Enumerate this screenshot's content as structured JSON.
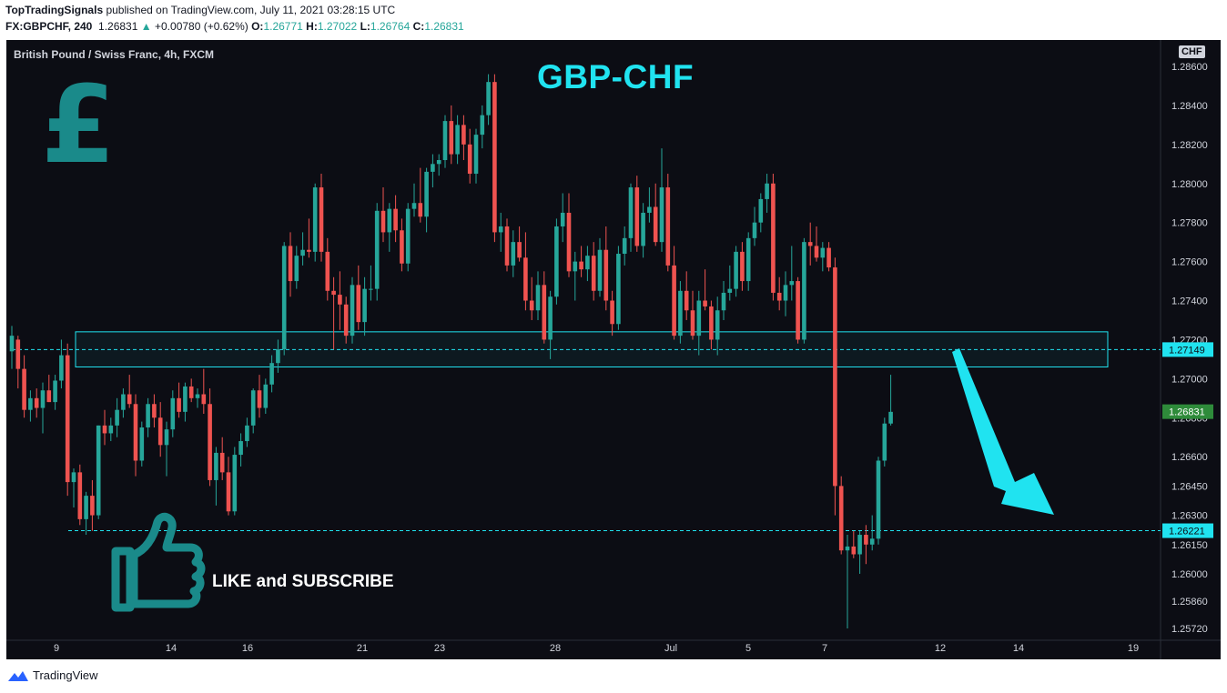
{
  "header": {
    "author": "TopTradingSignals",
    "published_text": " published on TradingView.com, July 11, 2021 03:28:15 UTC",
    "symbol": "FX:GBPCHF, 240",
    "last": "1.26831",
    "change": "+0.00780 (+0.62%)",
    "o_label": "O:",
    "o": "1.26771",
    "h_label": "H:",
    "h": "1.27022",
    "l_label": "L:",
    "l": "1.26764",
    "c_label": "C:",
    "c": "1.26831"
  },
  "chart": {
    "symbol_line": "British Pound / Swiss Franc, 4h, FXCM",
    "overlay_title": "GBP-CHF",
    "pound_symbol": "£",
    "cta": "LIKE and SUBSCRIBE",
    "currency_badge": "CHF"
  },
  "footer": {
    "brand": "TradingView"
  },
  "colors": {
    "up": "#26a69a",
    "down": "#ef5350",
    "accent": "#20e3f0",
    "background": "#0c0d14"
  },
  "chart_data": {
    "type": "candlestick",
    "title": "GBP-CHF",
    "x_ticks": [
      "9",
      "14",
      "16",
      "21",
      "23",
      "28",
      "Jul",
      "5",
      "7",
      "12",
      "14",
      "19"
    ],
    "y_ticks": [
      1.286,
      1.284,
      1.282,
      1.28,
      1.278,
      1.276,
      1.274,
      1.272,
      1.27,
      1.268,
      1.266,
      1.2645,
      1.263,
      1.2615,
      1.26,
      1.2586,
      1.2572
    ],
    "y_tick_labels": [
      "1.28600",
      "1.28400",
      "1.28200",
      "1.28000",
      "1.27800",
      "1.27600",
      "1.27400",
      "1.27200",
      "1.27000",
      "1.26800",
      "1.26600",
      "1.26450",
      "1.26300",
      "1.26150",
      "1.26000",
      "1.25860",
      "1.25720"
    ],
    "ylim": [
      1.2566,
      1.2868
    ],
    "resistance_zone": [
      1.2706,
      1.2724
    ],
    "levels": [
      {
        "value": 1.27149,
        "label": "1.27149",
        "style": "dashed"
      },
      {
        "value": 1.26221,
        "label": "1.26221",
        "style": "dashed"
      }
    ],
    "last_price": {
      "value": 1.26831,
      "label": "1.26831"
    },
    "annotation": "arrow pointing down toward 1.26221",
    "candles": [
      [
        1.2714,
        1.2727,
        1.2705,
        1.2722
      ],
      [
        1.272,
        1.2722,
        1.2695,
        1.2705
      ],
      [
        1.2705,
        1.2712,
        1.268,
        1.2684
      ],
      [
        1.2684,
        1.2694,
        1.2678,
        1.269
      ],
      [
        1.269,
        1.2695,
        1.268,
        1.2685
      ],
      [
        1.2685,
        1.2698,
        1.2672,
        1.2694
      ],
      [
        1.2694,
        1.2702,
        1.2688,
        1.2688
      ],
      [
        1.2688,
        1.2702,
        1.2684,
        1.2699
      ],
      [
        1.2699,
        1.272,
        1.2695,
        1.2712
      ],
      [
        1.2712,
        1.2718,
        1.264,
        1.2647
      ],
      [
        1.2647,
        1.2654,
        1.2634,
        1.2652
      ],
      [
        1.2652,
        1.2656,
        1.2625,
        1.2628
      ],
      [
        1.2628,
        1.2642,
        1.262,
        1.264
      ],
      [
        1.264,
        1.2648,
        1.2622,
        1.263
      ],
      [
        1.263,
        1.2676,
        1.2628,
        1.2676
      ],
      [
        1.2676,
        1.2684,
        1.2666,
        1.2672
      ],
      [
        1.2672,
        1.268,
        1.2668,
        1.2676
      ],
      [
        1.2676,
        1.269,
        1.267,
        1.2684
      ],
      [
        1.2684,
        1.2695,
        1.268,
        1.2692
      ],
      [
        1.2692,
        1.2702,
        1.2685,
        1.2687
      ],
      [
        1.2687,
        1.2692,
        1.265,
        1.2658
      ],
      [
        1.2658,
        1.2678,
        1.2655,
        1.2675
      ],
      [
        1.2675,
        1.269,
        1.267,
        1.2687
      ],
      [
        1.2687,
        1.2692,
        1.2675,
        1.268
      ],
      [
        1.268,
        1.2688,
        1.266,
        1.2666
      ],
      [
        1.2666,
        1.2678,
        1.265,
        1.2674
      ],
      [
        1.2674,
        1.2694,
        1.267,
        1.269
      ],
      [
        1.269,
        1.2698,
        1.268,
        1.2683
      ],
      [
        1.2683,
        1.2698,
        1.2678,
        1.2696
      ],
      [
        1.2696,
        1.27,
        1.2688,
        1.269
      ],
      [
        1.269,
        1.2695,
        1.2685,
        1.2692
      ],
      [
        1.2692,
        1.2705,
        1.2682,
        1.2687
      ],
      [
        1.2687,
        1.2695,
        1.2645,
        1.2648
      ],
      [
        1.2648,
        1.2665,
        1.2635,
        1.2662
      ],
      [
        1.2662,
        1.267,
        1.2648,
        1.2652
      ],
      [
        1.2652,
        1.266,
        1.263,
        1.2632
      ],
      [
        1.2632,
        1.2665,
        1.263,
        1.2661
      ],
      [
        1.2661,
        1.2672,
        1.2655,
        1.2668
      ],
      [
        1.2668,
        1.268,
        1.2665,
        1.2676
      ],
      [
        1.2676,
        1.2695,
        1.2672,
        1.2694
      ],
      [
        1.2694,
        1.2702,
        1.268,
        1.2685
      ],
      [
        1.2685,
        1.27,
        1.2682,
        1.2697
      ],
      [
        1.2697,
        1.2712,
        1.2693,
        1.2708
      ],
      [
        1.2708,
        1.272,
        1.2703,
        1.2715
      ],
      [
        1.2715,
        1.277,
        1.2712,
        1.2768
      ],
      [
        1.2768,
        1.2775,
        1.2742,
        1.275
      ],
      [
        1.275,
        1.2768,
        1.2746,
        1.2763
      ],
      [
        1.2763,
        1.2775,
        1.2758,
        1.2766
      ],
      [
        1.2766,
        1.2782,
        1.2762,
        1.2765
      ],
      [
        1.2765,
        1.28,
        1.276,
        1.2798
      ],
      [
        1.2798,
        1.2805,
        1.276,
        1.2765
      ],
      [
        1.2765,
        1.2772,
        1.274,
        1.2745
      ],
      [
        1.2745,
        1.2752,
        1.2715,
        1.2743
      ],
      [
        1.2743,
        1.2755,
        1.2725,
        1.2738
      ],
      [
        1.2738,
        1.2742,
        1.2718,
        1.2722
      ],
      [
        1.2722,
        1.2752,
        1.2718,
        1.2748
      ],
      [
        1.2748,
        1.2758,
        1.2725,
        1.2729
      ],
      [
        1.2729,
        1.2752,
        1.2722,
        1.2746
      ],
      [
        1.2746,
        1.2758,
        1.274,
        1.2746
      ],
      [
        1.2746,
        1.279,
        1.274,
        1.2786
      ],
      [
        1.2786,
        1.2798,
        1.277,
        1.2775
      ],
      [
        1.2775,
        1.279,
        1.2765,
        1.2787
      ],
      [
        1.2787,
        1.2794,
        1.277,
        1.2776
      ],
      [
        1.2776,
        1.2782,
        1.2755,
        1.2759
      ],
      [
        1.2759,
        1.279,
        1.2755,
        1.2787
      ],
      [
        1.2787,
        1.28,
        1.2783,
        1.279
      ],
      [
        1.279,
        1.2808,
        1.278,
        1.2783
      ],
      [
        1.2783,
        1.2808,
        1.2775,
        1.2806
      ],
      [
        1.2806,
        1.2815,
        1.2798,
        1.281
      ],
      [
        1.281,
        1.2815,
        1.2804,
        1.2812
      ],
      [
        1.2812,
        1.2835,
        1.2808,
        1.2832
      ],
      [
        1.2832,
        1.284,
        1.281,
        1.2815
      ],
      [
        1.2815,
        1.2835,
        1.281,
        1.283
      ],
      [
        1.283,
        1.2835,
        1.2812,
        1.282
      ],
      [
        1.282,
        1.2828,
        1.28,
        1.2805
      ],
      [
        1.2805,
        1.2828,
        1.28,
        1.2825
      ],
      [
        1.2825,
        1.284,
        1.2818,
        1.2835
      ],
      [
        1.2835,
        1.2856,
        1.283,
        1.2852
      ],
      [
        1.2852,
        1.2856,
        1.277,
        1.2775
      ],
      [
        1.2775,
        1.2785,
        1.2765,
        1.2778
      ],
      [
        1.2778,
        1.2782,
        1.2755,
        1.2758
      ],
      [
        1.2758,
        1.2776,
        1.2752,
        1.277
      ],
      [
        1.277,
        1.2778,
        1.276,
        1.2762
      ],
      [
        1.2762,
        1.2775,
        1.2735,
        1.274
      ],
      [
        1.274,
        1.2752,
        1.273,
        1.2735
      ],
      [
        1.2735,
        1.2755,
        1.273,
        1.2748
      ],
      [
        1.2748,
        1.2755,
        1.2718,
        1.272
      ],
      [
        1.272,
        1.2745,
        1.271,
        1.2742
      ],
      [
        1.2742,
        1.2782,
        1.2738,
        1.2778
      ],
      [
        1.2778,
        1.2795,
        1.277,
        1.2785
      ],
      [
        1.2785,
        1.2795,
        1.2752,
        1.2755
      ],
      [
        1.2755,
        1.2765,
        1.274,
        1.276
      ],
      [
        1.276,
        1.2768,
        1.2752,
        1.2756
      ],
      [
        1.2756,
        1.2768,
        1.275,
        1.2763
      ],
      [
        1.2763,
        1.277,
        1.274,
        1.2745
      ],
      [
        1.2745,
        1.2772,
        1.2742,
        1.2766
      ],
      [
        1.2766,
        1.2778,
        1.2735,
        1.274
      ],
      [
        1.274,
        1.2745,
        1.2722,
        1.2728
      ],
      [
        1.2728,
        1.2768,
        1.2725,
        1.2764
      ],
      [
        1.2764,
        1.2778,
        1.2758,
        1.2772
      ],
      [
        1.2772,
        1.28,
        1.2765,
        1.2798
      ],
      [
        1.2798,
        1.2804,
        1.2765,
        1.2768
      ],
      [
        1.2768,
        1.279,
        1.2762,
        1.2785
      ],
      [
        1.2785,
        1.2798,
        1.278,
        1.2788
      ],
      [
        1.2788,
        1.28,
        1.2768,
        1.277
      ],
      [
        1.277,
        1.2818,
        1.2765,
        1.2798
      ],
      [
        1.2798,
        1.2805,
        1.2755,
        1.2758
      ],
      [
        1.2758,
        1.2768,
        1.272,
        1.2722
      ],
      [
        1.2722,
        1.275,
        1.2718,
        1.2745
      ],
      [
        1.2745,
        1.2755,
        1.273,
        1.2735
      ],
      [
        1.2735,
        1.2745,
        1.272,
        1.2722
      ],
      [
        1.2722,
        1.2745,
        1.2712,
        1.274
      ],
      [
        1.274,
        1.2756,
        1.2735,
        1.2737
      ],
      [
        1.2737,
        1.274,
        1.2715,
        1.272
      ],
      [
        1.272,
        1.2742,
        1.2712,
        1.2735
      ],
      [
        1.2735,
        1.275,
        1.273,
        1.2744
      ],
      [
        1.2744,
        1.2758,
        1.274,
        1.2746
      ],
      [
        1.2746,
        1.2768,
        1.2742,
        1.2765
      ],
      [
        1.2765,
        1.277,
        1.2745,
        1.275
      ],
      [
        1.275,
        1.2775,
        1.2745,
        1.2772
      ],
      [
        1.2772,
        1.2788,
        1.2768,
        1.278
      ],
      [
        1.278,
        1.2795,
        1.2775,
        1.2792
      ],
      [
        1.2792,
        1.2805,
        1.2785,
        1.28
      ],
      [
        1.28,
        1.2805,
        1.274,
        1.2744
      ],
      [
        1.2744,
        1.2752,
        1.2735,
        1.274
      ],
      [
        1.274,
        1.2755,
        1.2732,
        1.2748
      ],
      [
        1.2748,
        1.2768,
        1.274,
        1.275
      ],
      [
        1.275,
        1.2752,
        1.2718,
        1.272
      ],
      [
        1.272,
        1.2772,
        1.2718,
        1.277
      ],
      [
        1.277,
        1.278,
        1.2758,
        1.2768
      ],
      [
        1.2768,
        1.2778,
        1.276,
        1.2762
      ],
      [
        1.2762,
        1.277,
        1.2755,
        1.2767
      ],
      [
        1.2767,
        1.277,
        1.2755,
        1.2757
      ],
      [
        1.2757,
        1.2762,
        1.263,
        1.2645
      ],
      [
        1.2645,
        1.265,
        1.261,
        1.2612
      ],
      [
        1.2612,
        1.262,
        1.2572,
        1.2614
      ],
      [
        1.2614,
        1.2622,
        1.2608,
        1.261
      ],
      [
        1.261,
        1.2622,
        1.26,
        1.262
      ],
      [
        1.262,
        1.2625,
        1.2605,
        1.2615
      ],
      [
        1.2615,
        1.263,
        1.2612,
        1.2618
      ],
      [
        1.2618,
        1.266,
        1.2615,
        1.2658
      ],
      [
        1.2658,
        1.268,
        1.2655,
        1.2677
      ],
      [
        1.2677,
        1.2702,
        1.2676,
        1.2683
      ]
    ]
  }
}
